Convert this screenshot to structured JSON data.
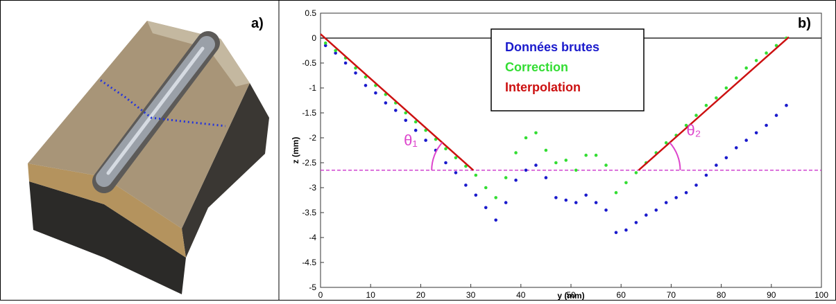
{
  "panel_a": {
    "label": "a)"
  },
  "chart_data": {
    "type": "scatter",
    "panel_label": "b)",
    "xlabel": "y (mm)",
    "ylabel": "z (mm)",
    "xlim": [
      0,
      100
    ],
    "xticks": [
      0,
      10,
      20,
      30,
      40,
      50,
      60,
      70,
      80,
      90,
      100
    ],
    "ylim": [
      -5,
      0.5
    ],
    "yticks": [
      -5,
      -4.5,
      -4,
      -3.5,
      -3,
      -2.5,
      -2,
      -1.5,
      -1,
      -0.5,
      0,
      0.5
    ],
    "series": [
      {
        "name": "Données brutes",
        "color": "#1a1acc",
        "kind": "points",
        "x": [
          1,
          3,
          5,
          7,
          9,
          11,
          13,
          15,
          17,
          19,
          21,
          23,
          25,
          27,
          29,
          31,
          33,
          35,
          37,
          39,
          41,
          43,
          45,
          47,
          49,
          51,
          53,
          55,
          57,
          59,
          61,
          63,
          65,
          67,
          69,
          71,
          73,
          75,
          77,
          79,
          81,
          83,
          85,
          87,
          89,
          91,
          93
        ],
        "values": [
          -0.15,
          -0.3,
          -0.5,
          -0.7,
          -0.95,
          -1.1,
          -1.3,
          -1.45,
          -1.65,
          -1.85,
          -2.05,
          -2.25,
          -2.5,
          -2.7,
          -2.95,
          -3.15,
          -3.4,
          -3.65,
          -3.3,
          -2.85,
          -2.65,
          -2.55,
          -2.8,
          -3.2,
          -3.25,
          -3.3,
          -3.15,
          -3.3,
          -3.45,
          -3.9,
          -3.85,
          -3.7,
          -3.55,
          -3.45,
          -3.3,
          -3.2,
          -3.1,
          -2.95,
          -2.75,
          -2.55,
          -2.4,
          -2.2,
          -2.05,
          -1.9,
          -1.75,
          -1.55,
          -1.35
        ]
      },
      {
        "name": "Correction",
        "color": "#33dd33",
        "kind": "points",
        "x": [
          1,
          3,
          5,
          7,
          9,
          11,
          13,
          15,
          17,
          19,
          21,
          23,
          25,
          27,
          29,
          31,
          33,
          35,
          37,
          39,
          41,
          43,
          45,
          47,
          49,
          51,
          53,
          55,
          57,
          59,
          61,
          63,
          65,
          67,
          69,
          71,
          73,
          75,
          77,
          79,
          81,
          83,
          85,
          87,
          89,
          91,
          93
        ],
        "values": [
          -0.1,
          -0.25,
          -0.4,
          -0.6,
          -0.78,
          -0.95,
          -1.13,
          -1.3,
          -1.5,
          -1.68,
          -1.85,
          -2.03,
          -2.22,
          -2.4,
          -2.57,
          -2.75,
          -3.0,
          -3.2,
          -2.8,
          -2.3,
          -2.0,
          -1.9,
          -2.25,
          -2.5,
          -2.45,
          -2.65,
          -2.35,
          -2.35,
          -2.55,
          -3.1,
          -2.9,
          -2.7,
          -2.5,
          -2.3,
          -2.1,
          -1.95,
          -1.75,
          -1.55,
          -1.35,
          -1.2,
          -1.0,
          -0.8,
          -0.6,
          -0.45,
          -0.3,
          -0.15,
          0.0
        ]
      },
      {
        "name": "Interpolation",
        "color": "#cc1111",
        "kind": "line",
        "x": [
          0,
          30.5,
          null,
          63.5,
          93.5
        ],
        "values": [
          0.08,
          -2.65,
          null,
          -2.65,
          0.02
        ]
      }
    ],
    "hlines": [
      {
        "value": 0,
        "color": "#000000",
        "style": "solid"
      },
      {
        "value": -2.65,
        "color": "#cc33cc",
        "style": "dashed"
      }
    ],
    "annotations": [
      {
        "text": "θ₁",
        "x": 18,
        "y": -2.15,
        "color": "#dd44cc"
      },
      {
        "text": "θ₂",
        "x": 74.5,
        "y": -1.95,
        "color": "#dd44cc"
      }
    ]
  }
}
